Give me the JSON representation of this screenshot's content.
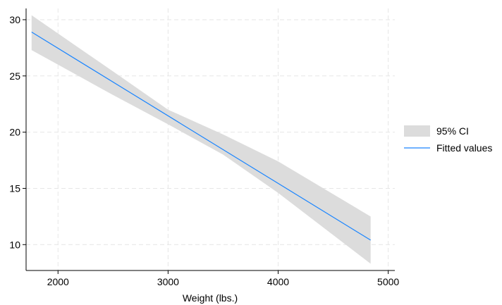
{
  "chart_data": {
    "type": "line",
    "title": "",
    "xlabel": "Weight (lbs.)",
    "ylabel": "",
    "xlim": [
      1710,
      5060
    ],
    "ylim": [
      7.7,
      31.0
    ],
    "x_ticks": [
      2000,
      3000,
      4000,
      5000
    ],
    "y_ticks": [
      10,
      15,
      20,
      25,
      30
    ],
    "grid": true,
    "legend_position": "right",
    "series": [
      {
        "name": "95% CI",
        "kind": "band",
        "color": "#dcdcdc",
        "x": [
          1760,
          2500,
          3000,
          3500,
          4000,
          4840
        ],
        "lower": [
          27.3,
          23.3,
          20.7,
          18.0,
          14.6,
          8.3
        ],
        "upper": [
          30.4,
          25.4,
          22.0,
          19.8,
          17.4,
          12.5
        ]
      },
      {
        "name": "Fitted values",
        "kind": "line",
        "color": "#1a85ff",
        "x": [
          1760,
          4840
        ],
        "y": [
          28.9,
          10.4
        ]
      }
    ]
  }
}
